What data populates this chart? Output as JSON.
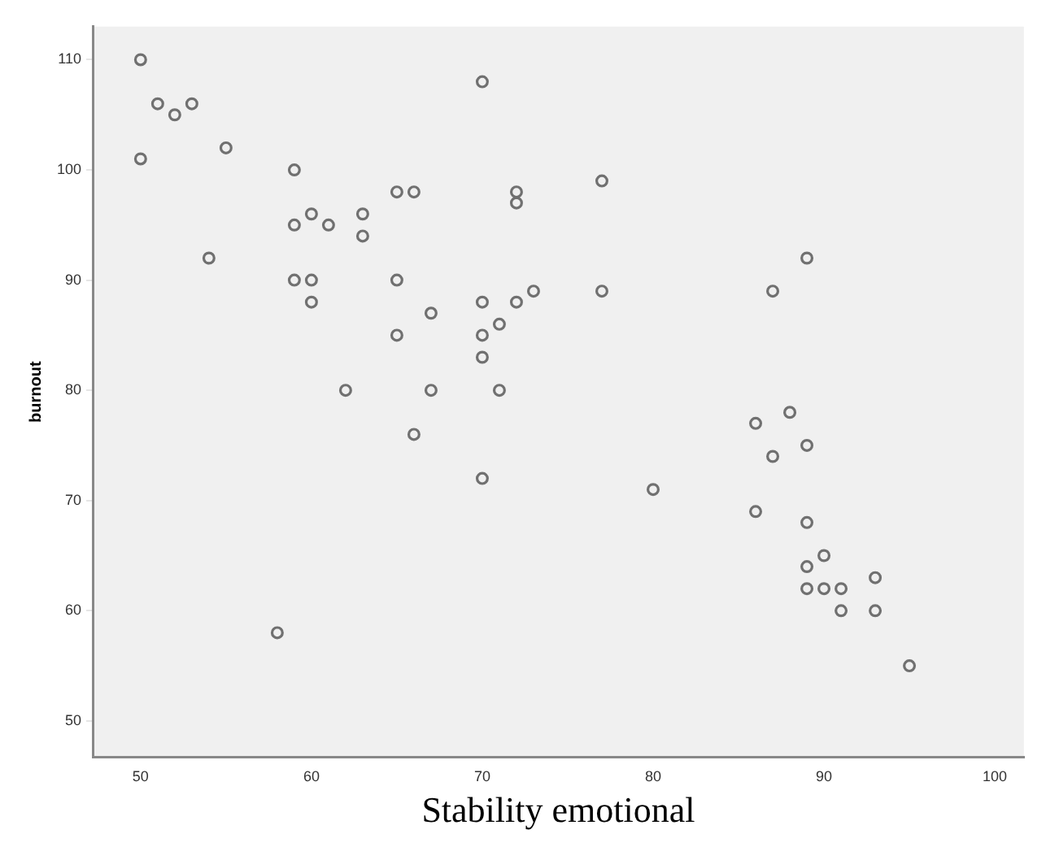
{
  "chart_data": {
    "type": "scatter",
    "xlabel": "Stability emotional",
    "ylabel": "burnout",
    "x": [
      50,
      50,
      51,
      52,
      53,
      55,
      54,
      59,
      59,
      60,
      61,
      59,
      60,
      60,
      58,
      62,
      63,
      63,
      65,
      66,
      65,
      65,
      66,
      67,
      67,
      70,
      70,
      70,
      70,
      71,
      71,
      70,
      72,
      72,
      72,
      73,
      77,
      77,
      80,
      86,
      86,
      87,
      87,
      88,
      89,
      89,
      89,
      89,
      90,
      89,
      90,
      91,
      91,
      93,
      93,
      95
    ],
    "values": [
      110,
      101,
      106,
      105,
      106,
      102,
      92,
      100,
      95,
      96,
      95,
      90,
      90,
      88,
      58,
      80,
      96,
      94,
      98,
      98,
      90,
      85,
      76,
      87,
      80,
      108,
      88,
      85,
      83,
      86,
      80,
      72,
      98,
      97,
      88,
      89,
      99,
      89,
      71,
      77,
      69,
      89,
      74,
      78,
      92,
      75,
      68,
      64,
      65,
      62,
      62,
      62,
      60,
      63,
      60,
      55
    ],
    "color": "#707070",
    "marker": "circle",
    "grid": false,
    "legend": false,
    "xlim": [
      47.2,
      101.7
    ],
    "ylim": [
      46.7,
      113
    ],
    "xticks": [
      50,
      60,
      70,
      80,
      90,
      100
    ],
    "yticks": [
      50,
      60,
      70,
      80,
      90,
      100,
      110
    ]
  }
}
